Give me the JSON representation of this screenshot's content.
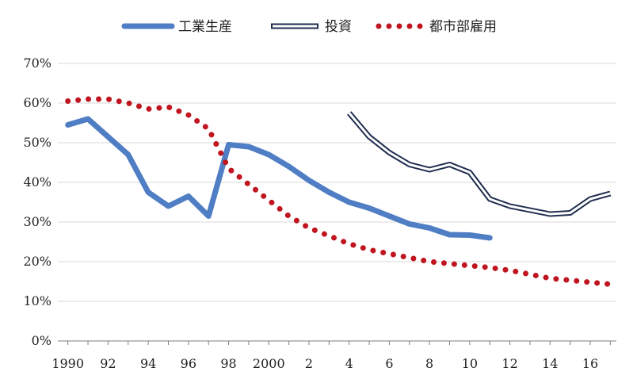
{
  "chart_data": {
    "type": "line",
    "title": "",
    "xlabel": "",
    "ylabel": "",
    "xlim": [
      1990,
      2017
    ],
    "ylim": [
      0,
      70
    ],
    "y_ticks": [
      0,
      10,
      20,
      30,
      40,
      50,
      60,
      70
    ],
    "y_tick_labels": [
      "0%",
      "10%",
      "20%",
      "30%",
      "40%",
      "50%",
      "60%",
      "70%"
    ],
    "x_ticks": [
      1990,
      1992,
      1994,
      1996,
      1998,
      2000,
      2002,
      2004,
      2006,
      2008,
      2010,
      2012,
      2014,
      2016
    ],
    "x_tick_labels": [
      "1990",
      "92",
      "94",
      "96",
      "98",
      "2000",
      "2",
      "4",
      "6",
      "8",
      "10",
      "12",
      "14",
      "16"
    ],
    "grid": "horizontal",
    "legend_position": "top",
    "series": [
      {
        "name": "工業生産",
        "style": "solid-thick",
        "color": "#4f7ec4",
        "x": [
          1990,
          1991,
          1992,
          1993,
          1994,
          1995,
          1996,
          1997,
          1998,
          1999,
          2000,
          2001,
          2002,
          2003,
          2004,
          2005,
          2006,
          2007,
          2008,
          2009,
          2010,
          2011
        ],
        "values": [
          54.5,
          56.0,
          51.5,
          47.0,
          37.5,
          34.0,
          36.5,
          31.5,
          49.5,
          49.0,
          47.0,
          44.0,
          40.5,
          37.5,
          35.0,
          33.5,
          31.5,
          29.5,
          28.5,
          26.8,
          26.7,
          26.0
        ]
      },
      {
        "name": "投資",
        "style": "double-outline",
        "color": "#1f2d4f",
        "x": [
          2004,
          2005,
          2006,
          2007,
          2008,
          2009,
          2010,
          2011,
          2012,
          2013,
          2014,
          2015,
          2016,
          2017
        ],
        "values": [
          57.5,
          51.5,
          47.5,
          44.5,
          43.2,
          44.5,
          42.5,
          35.8,
          34.0,
          33.0,
          32.0,
          32.3,
          35.8,
          37.2
        ]
      },
      {
        "name": "都市部雇用",
        "style": "dotted",
        "color": "#c0151f",
        "x": [
          1990,
          1991,
          1992,
          1993,
          1994,
          1995,
          1996,
          1997,
          1998,
          1999,
          2000,
          2001,
          2002,
          2003,
          2004,
          2005,
          2006,
          2007,
          2008,
          2009,
          2010,
          2011,
          2012,
          2013,
          2014,
          2015,
          2016,
          2017
        ],
        "values": [
          60.5,
          61.0,
          61.0,
          60.0,
          58.5,
          59.0,
          57.0,
          53.5,
          43.5,
          39.5,
          35.5,
          31.5,
          28.5,
          26.5,
          24.5,
          23.0,
          22.0,
          21.0,
          20.0,
          19.5,
          19.0,
          18.5,
          17.8,
          16.8,
          15.8,
          15.3,
          14.8,
          14.3
        ]
      }
    ]
  }
}
